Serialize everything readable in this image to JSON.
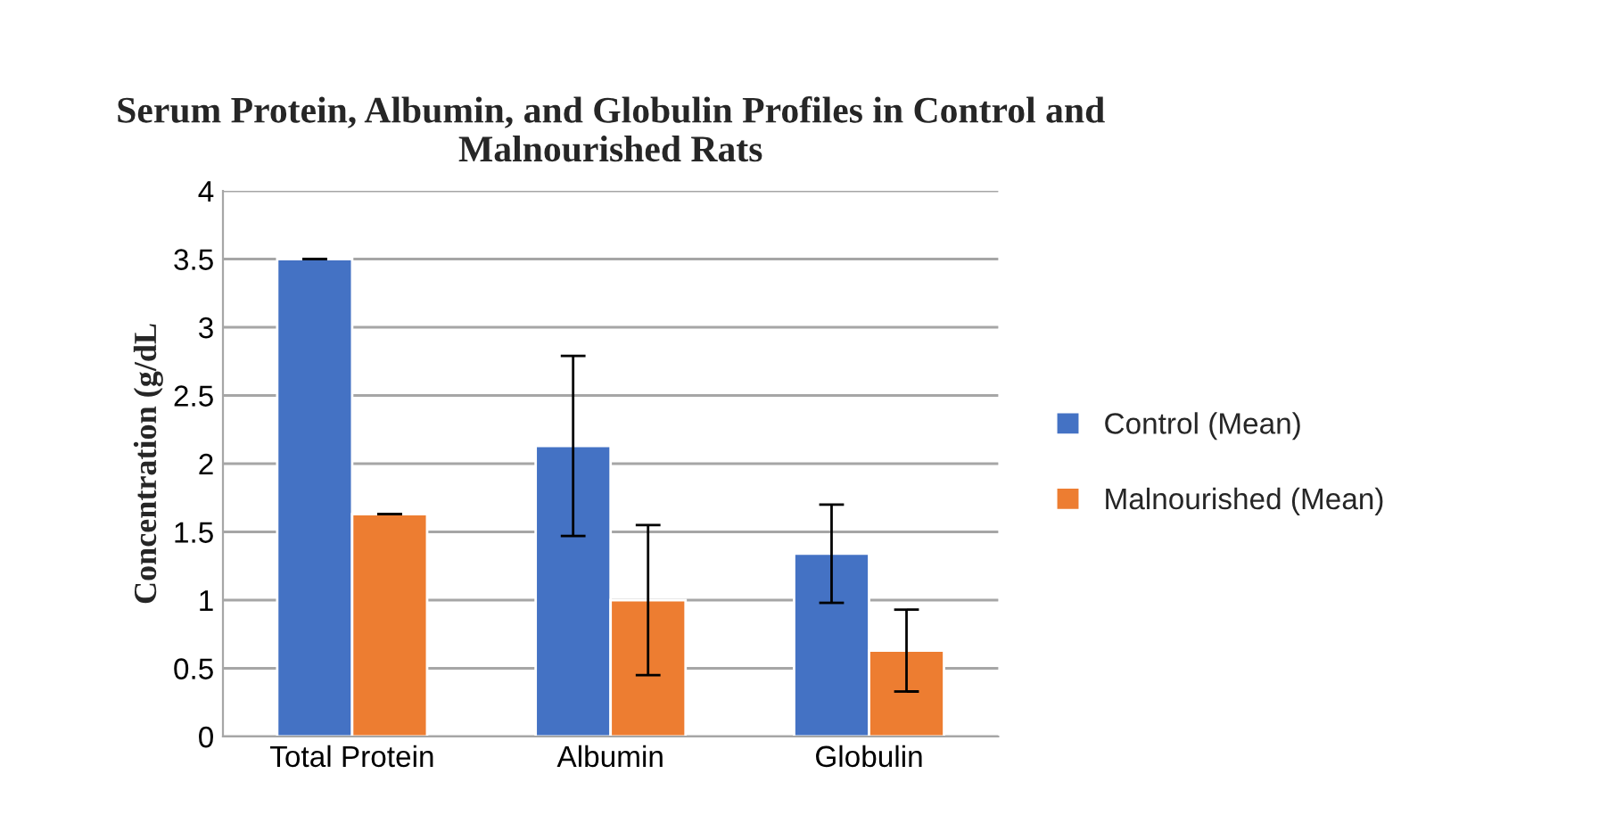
{
  "chart_data": {
    "type": "bar",
    "title": "Serum Protein, Albumin, and Globulin Profiles in Control and Malnourished Rats",
    "ylabel": "Concentration (g/dL",
    "categories": [
      "Total Protein",
      "Albumin",
      "Globulin"
    ],
    "series": [
      {
        "name": "Control (Mean)",
        "color": "#4472c4",
        "values": [
          3.5,
          2.13,
          1.34
        ],
        "errors": [
          0,
          0.66,
          0.36
        ]
      },
      {
        "name": "Malnourished (Mean)",
        "color": "#ed7d31",
        "values": [
          1.63,
          1.0,
          0.63
        ],
        "errors": [
          0,
          0.55,
          0.3
        ]
      }
    ],
    "ylim": [
      0,
      4
    ],
    "yticks": [
      0,
      0.5,
      1,
      1.5,
      2,
      2.5,
      3,
      3.5,
      4
    ],
    "grid": "y",
    "legend": "right"
  }
}
